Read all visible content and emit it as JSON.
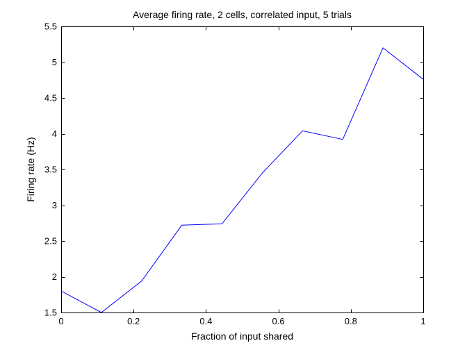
{
  "chart_data": {
    "type": "line",
    "title": "Average firing rate, 2 cells, correlated input, 5 trials",
    "xlabel": "Fraction of input shared",
    "ylabel": "Firing rate (Hz)",
    "xlim": [
      0,
      1
    ],
    "ylim": [
      1.5,
      5.5
    ],
    "xticks": [
      0,
      0.2,
      0.4,
      0.6,
      0.8,
      1
    ],
    "xtick_labels": [
      "0",
      "0.2",
      "0.4",
      "0.6",
      "0.8",
      "1"
    ],
    "yticks": [
      1.5,
      2,
      2.5,
      3,
      3.5,
      4,
      4.5,
      5,
      5.5
    ],
    "ytick_labels": [
      "1.5",
      "2",
      "2.5",
      "3",
      "3.5",
      "4",
      "4.5",
      "5",
      "5.5"
    ],
    "grid": false,
    "legend": "none",
    "series": [
      {
        "color": "#0000ff",
        "x": [
          0,
          0.1111,
          0.2222,
          0.3333,
          0.4444,
          0.5556,
          0.6667,
          0.7778,
          0.8889,
          1
        ],
        "y": [
          1.8,
          1.5,
          1.94,
          2.72,
          2.74,
          3.45,
          4.04,
          3.92,
          5.2,
          4.76
        ]
      }
    ]
  }
}
